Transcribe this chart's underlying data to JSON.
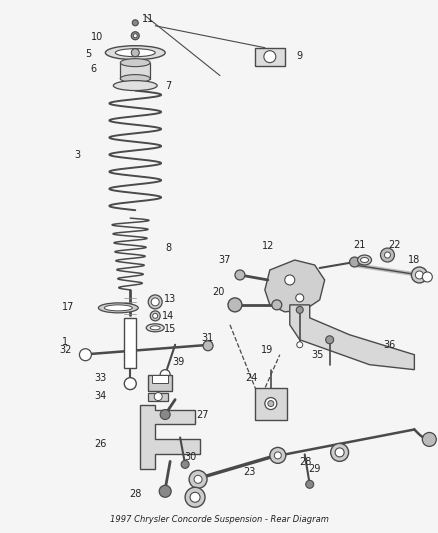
{
  "title": "1997 Chrysler Concorde Suspension - Rear Diagram",
  "background_color": "#f5f5f5",
  "line_color": "#4a4a4a",
  "text_color": "#222222",
  "fig_width": 4.38,
  "fig_height": 5.33,
  "dpi": 100
}
